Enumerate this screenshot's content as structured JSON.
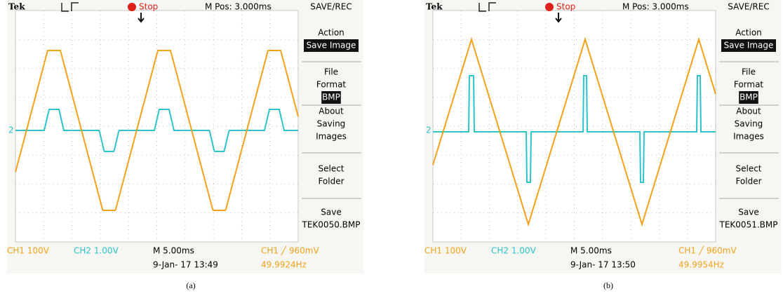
{
  "panels": [
    {
      "header": {
        "logo": "Tek",
        "run_state": "Stop",
        "position": "M Pos: 3.000ms",
        "menu_title": "SAVE/REC"
      },
      "ch_marker": "2",
      "menu": [
        {
          "lines": [
            "Action"
          ],
          "highlight": "Save Image"
        },
        {
          "lines": [
            "File",
            "Format"
          ],
          "highlight": "BMP"
        },
        {
          "lines": [
            "About",
            "Saving",
            "Images"
          ]
        },
        {
          "lines": [
            "Select",
            "Folder"
          ]
        },
        {
          "lines": [
            "Save",
            "TEK0050.BMP"
          ]
        }
      ],
      "footer": {
        "ch1": "CH1  100V",
        "ch2": "CH2  1.00V",
        "timebase": "M 5.00ms",
        "date": "9-Jan- 17 13:49",
        "trigger": "CH1 ╱ 960mV",
        "frequency": "49.9924Hz"
      },
      "caption": "(a)"
    },
    {
      "header": {
        "logo": "Tek",
        "run_state": "Stop",
        "position": "M Pos: 3.000ms",
        "menu_title": "SAVE/REC"
      },
      "ch_marker": "2",
      "menu": [
        {
          "lines": [
            "Action"
          ],
          "highlight": "Save Image"
        },
        {
          "lines": [
            "File",
            "Format"
          ],
          "highlight": "BMP"
        },
        {
          "lines": [
            "About",
            "Saving",
            "Images"
          ]
        },
        {
          "lines": [
            "Select",
            "Folder"
          ]
        },
        {
          "lines": [
            "Save",
            "TEK0051.BMP"
          ]
        }
      ],
      "footer": {
        "ch1": "CH1  100V",
        "ch2": "CH2  1.00V",
        "timebase": "M 5.00ms",
        "date": "9-Jan- 17 13:50",
        "trigger": "CH1 ╱ 960mV",
        "frequency": "49.9954Hz"
      },
      "caption": "(b)"
    }
  ]
}
